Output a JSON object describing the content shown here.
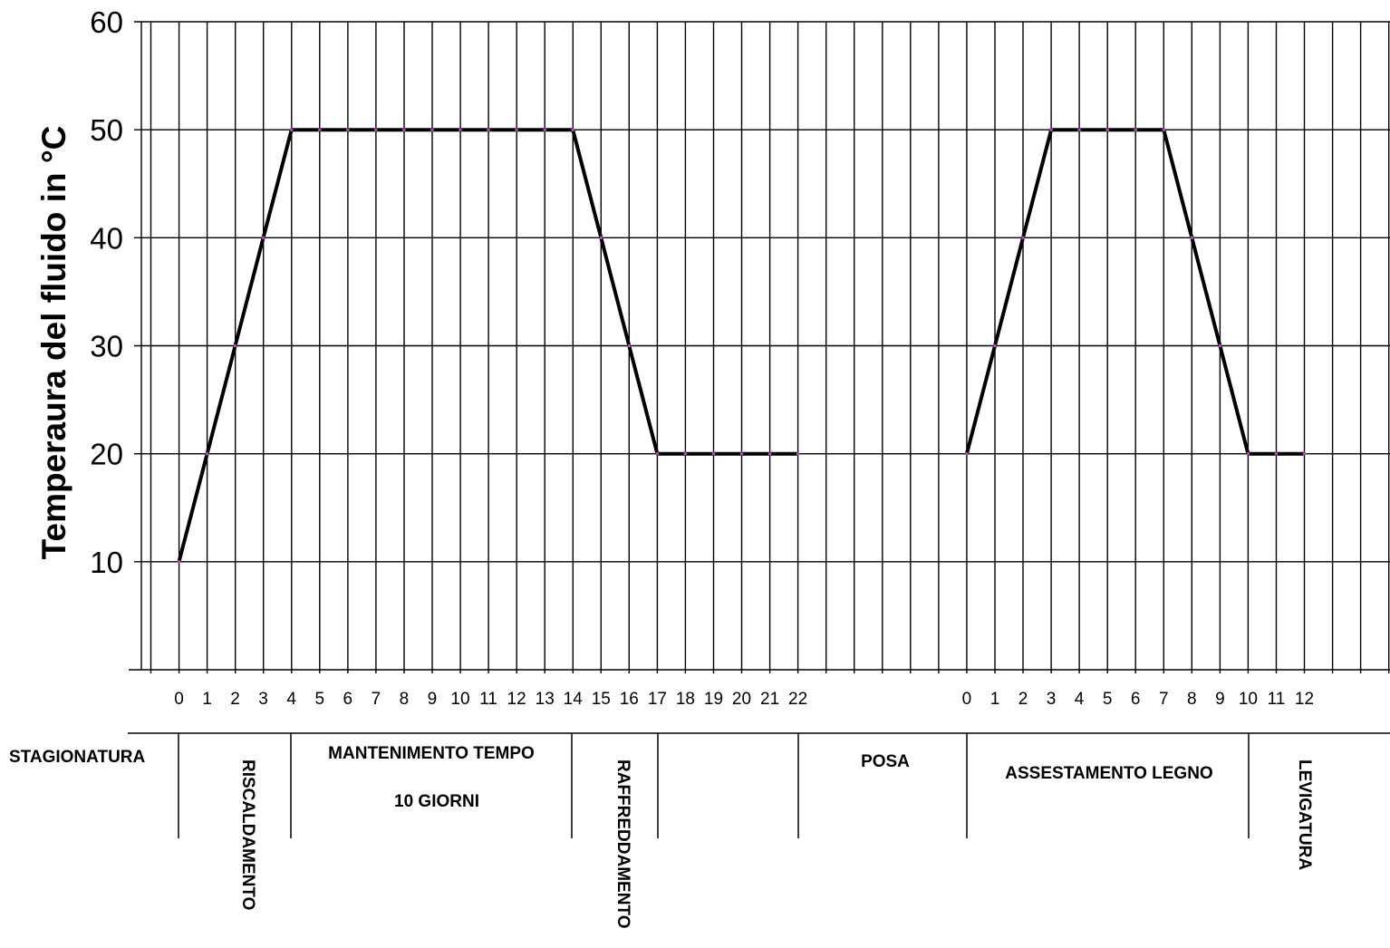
{
  "chart_data": {
    "type": "line",
    "ylabel": "Temperaura del fluido in °C",
    "xlabel": "",
    "title": "",
    "ylim": [
      0,
      60
    ],
    "y_ticks": [
      10,
      20,
      30,
      40,
      50,
      60
    ],
    "grid": true,
    "series": [
      {
        "x": [
          "0",
          "1",
          "2",
          "3",
          "4",
          "5",
          "6",
          "7",
          "8",
          "9",
          "10",
          "11",
          "12",
          "13",
          "14",
          "15",
          "16",
          "17",
          "18",
          "19",
          "20",
          "21",
          "22"
        ],
        "values": [
          10,
          20,
          30,
          40,
          50,
          50,
          50,
          50,
          50,
          50,
          50,
          50,
          50,
          50,
          50,
          40,
          30,
          20,
          20,
          20,
          20,
          20,
          20
        ]
      },
      {
        "x": [
          "0",
          "1",
          "2",
          "3",
          "4",
          "5",
          "6",
          "7",
          "8",
          "9",
          "10",
          "11",
          "12"
        ],
        "values": [
          20,
          30,
          40,
          50,
          50,
          50,
          50,
          50,
          40,
          30,
          20,
          20,
          20
        ]
      }
    ],
    "x_ticks_part1": [
      "0",
      "1",
      "2",
      "3",
      "4",
      "5",
      "6",
      "7",
      "8",
      "9",
      "10",
      "11",
      "12",
      "13",
      "14",
      "15",
      "16",
      "17",
      "18",
      "19",
      "20",
      "21",
      "22"
    ],
    "x_ticks_part2": [
      "0",
      "1",
      "2",
      "3",
      "4",
      "5",
      "6",
      "7",
      "8",
      "9",
      "10",
      "11",
      "12"
    ],
    "line_color": "#000000",
    "point_color": "#c040c0"
  },
  "phases": {
    "stagionatura": "STAGIONATURA",
    "riscaldamento": "RISCALDAMENTO",
    "mantenimento_line1": "MANTENIMENTO TEMPO",
    "mantenimento_line2": "10 GIORNI",
    "raffreddamento": "RAFFREDDAMENTO",
    "posa": "POSA",
    "assestamento": "ASSESTAMENTO LEGNO",
    "levigatura": "LEVIGATURA"
  }
}
